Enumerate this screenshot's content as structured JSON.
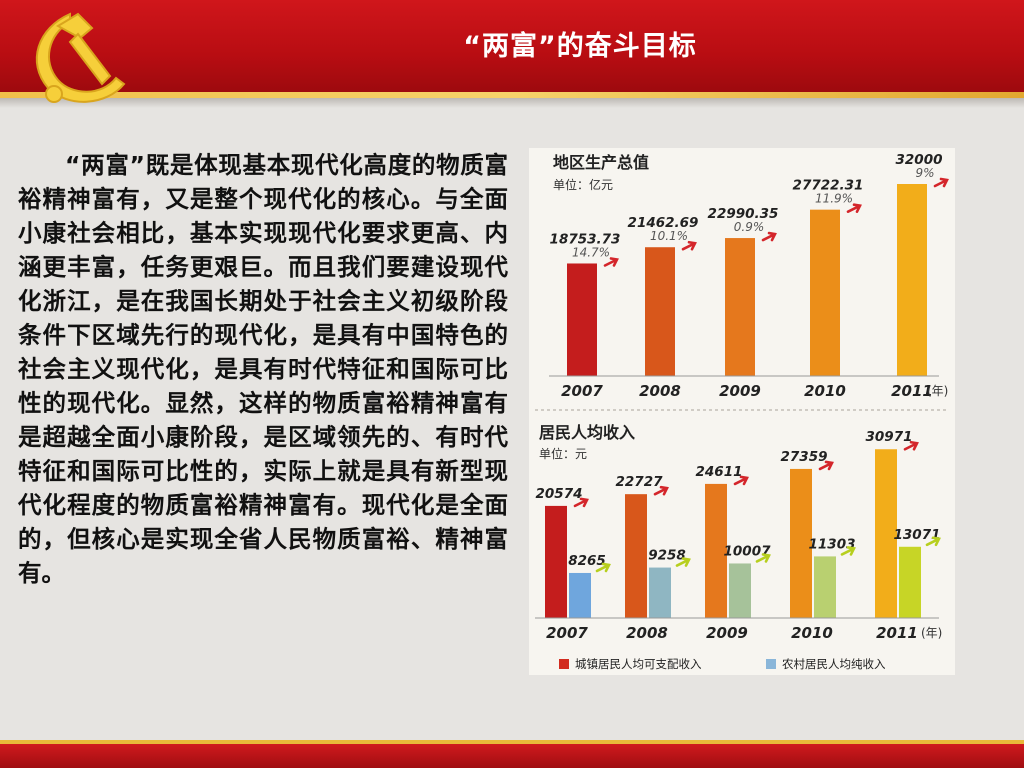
{
  "header": {
    "title": "“两富”的奋斗目标"
  },
  "body_text": "“两富”既是体现基本现代化高度的物质富裕精神富有，又是整个现代化的核心。与全面小康社会相比，基本实现现代化要求更高、内涵更丰富，任务更艰巨。而且我们要建设现代化浙江，是在我国长期处于社会主义初级阶段条件下区域先行的现代化，是具有中国特色的社会主义现代化，是具有时代特征和国际可比性的现代化。显然，这样的物质富裕精神富有是超越全面小康阶段，是区域领先的、有时代特征和国际可比性的，实际上就是具有新型现代化程度的物质富裕精神富有。现代化是全面的，但核心是实现全省人民物质富裕、精神富有。",
  "chart_data": [
    {
      "type": "bar",
      "title": "地区生产总值",
      "unit": "单位：亿元",
      "categories": [
        "2007",
        "2008",
        "2009",
        "2010",
        "2011"
      ],
      "x_suffix": "(年)",
      "series": [
        {
          "values": [
            18753.73,
            21462.69,
            22990.35,
            27722.31,
            32000
          ],
          "value_labels": [
            "18753.73",
            "21462.69",
            "22990.35",
            "27722.31",
            "32000"
          ],
          "growth_labels": [
            "14.7%",
            "10.1%",
            "0.9%",
            "11.9%",
            "9%"
          ]
        }
      ],
      "colors": [
        "#c41d1d",
        "#d8571b",
        "#e5781d",
        "#eb8e19",
        "#f2ad1a"
      ]
    },
    {
      "type": "bar",
      "title": "居民人均收入",
      "unit": "单位：元",
      "categories": [
        "2007",
        "2008",
        "2009",
        "2010",
        "2011"
      ],
      "x_suffix": "(年)",
      "series": [
        {
          "name": "城镇居民人均可支配收入",
          "values": [
            20574,
            22727,
            24611,
            27359,
            30971
          ],
          "value_labels": [
            "20574",
            "22727",
            "24611",
            "27359",
            "30971"
          ],
          "colors": [
            "#c41d1d",
            "#d8571b",
            "#e5781d",
            "#eb8e19",
            "#f2ad1a"
          ]
        },
        {
          "name": "农村居民人均纯收入",
          "values": [
            8265,
            9258,
            10007,
            11303,
            13071
          ],
          "value_labels": [
            "8265",
            "9258",
            "10007",
            "11303",
            "13071"
          ],
          "colors": [
            "#6fa6dd",
            "#8fb6c2",
            "#a6c29a",
            "#b9d070",
            "#c7d526"
          ]
        }
      ]
    }
  ]
}
